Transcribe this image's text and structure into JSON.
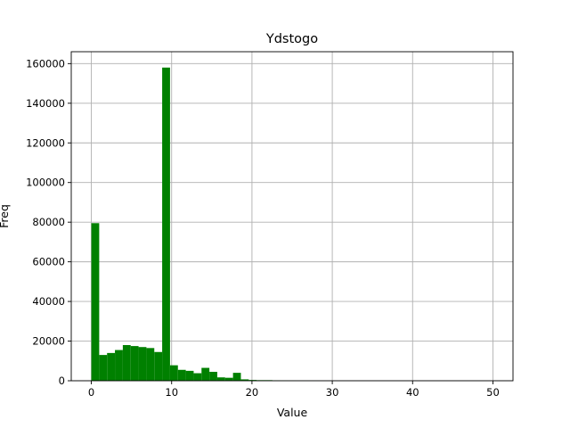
{
  "chart_data": {
    "type": "bar",
    "title": "Ydstogo",
    "xlabel": "Value",
    "ylabel": "Freq",
    "bin_width": 0.98,
    "bins_start": [
      0.0,
      0.98,
      1.96,
      2.94,
      3.92,
      4.9,
      5.88,
      6.86,
      7.84,
      8.82,
      9.8,
      10.78,
      11.76,
      12.74,
      13.72,
      14.7,
      15.68,
      16.66,
      17.64,
      18.62,
      19.6,
      20.58,
      21.56,
      22.54,
      23.52,
      24.5,
      25.48,
      26.46,
      27.44,
      28.42,
      29.4,
      30.38,
      31.36,
      32.34,
      33.32,
      34.3,
      35.28,
      36.26,
      37.24,
      38.22,
      39.2,
      40.18,
      41.16,
      42.14,
      43.12,
      44.1,
      45.08,
      46.06,
      47.04,
      48.02,
      49.0
    ],
    "values": [
      79500,
      13000,
      14000,
      15500,
      18000,
      17500,
      17000,
      16500,
      14500,
      158000,
      7800,
      5500,
      5000,
      3800,
      6500,
      4500,
      1700,
      1500,
      4000,
      700,
      400,
      300,
      300,
      200,
      100,
      80,
      60,
      50,
      40,
      30,
      30,
      20,
      20,
      15,
      15,
      10,
      10,
      10,
      10,
      10,
      8,
      8,
      6,
      6,
      5,
      5,
      5,
      4,
      4,
      3,
      3
    ],
    "xlim": [
      -2.5,
      52.5
    ],
    "ylim": [
      0,
      166000
    ],
    "xticks": [
      0,
      10,
      20,
      30,
      40,
      50
    ],
    "yticks": [
      0,
      20000,
      40000,
      60000,
      80000,
      100000,
      120000,
      140000,
      160000
    ],
    "bar_color": "#008000",
    "grid": true
  }
}
